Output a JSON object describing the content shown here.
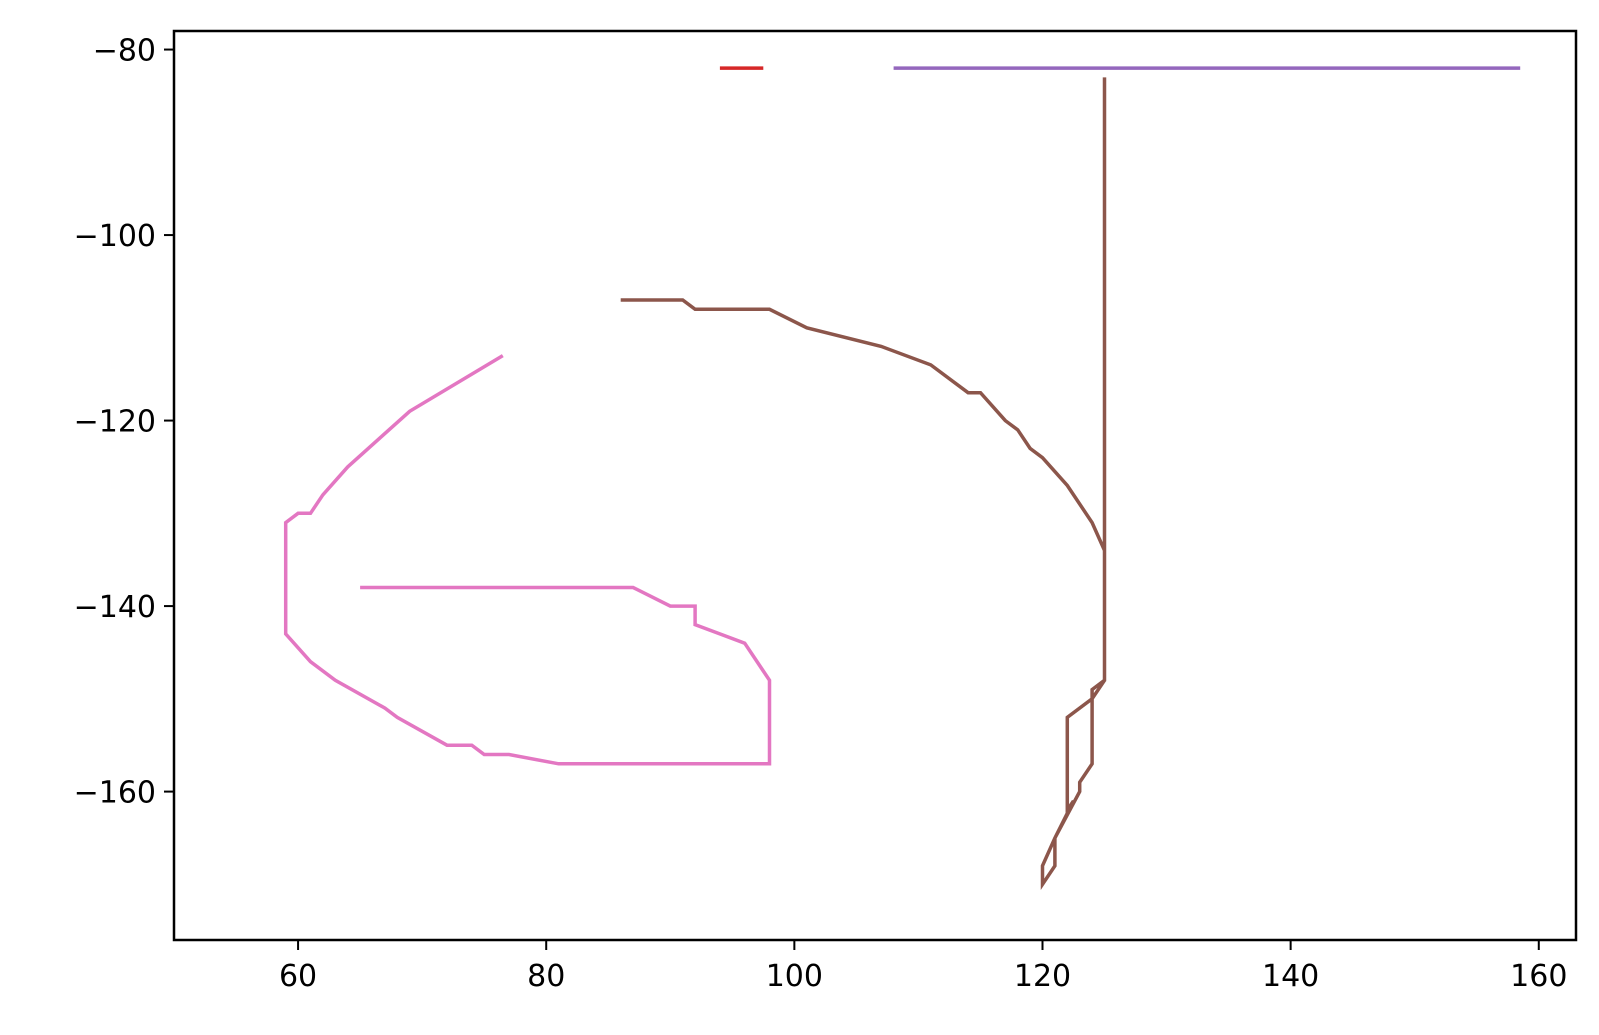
{
  "chart_data": {
    "type": "line",
    "title": "",
    "xlabel": "",
    "ylabel": "",
    "xlim": [
      50,
      163
    ],
    "ylim": [
      -176,
      -78
    ],
    "grid": false,
    "x_ticks": [
      60,
      80,
      100,
      120,
      140,
      160
    ],
    "y_ticks": [
      -80,
      -100,
      -120,
      -140,
      -160
    ],
    "x_tick_labels": [
      "60",
      "80",
      "100",
      "120",
      "140",
      "160"
    ],
    "y_tick_labels": [
      "−80",
      "−100",
      "−120",
      "−140",
      "−160"
    ],
    "series": [
      {
        "color": "#d62728",
        "x": [
          94,
          97.5
        ],
        "y": [
          -82,
          -82
        ]
      },
      {
        "color": "#9467bd",
        "x": [
          108,
          158.5
        ],
        "y": [
          -82,
          -82
        ]
      },
      {
        "color": "#8c564b",
        "x": [
          86,
          91,
          92,
          98,
          101,
          107,
          111,
          114,
          115,
          117,
          118,
          119,
          120,
          122,
          124,
          125,
          125,
          125,
          124,
          122,
          122,
          122.5,
          121,
          121,
          120,
          120,
          121,
          121,
          123,
          123,
          124,
          124,
          125,
          125
        ],
        "y": [
          -107,
          -107,
          -108,
          -108,
          -110,
          -112,
          -114,
          -117,
          -117,
          -120,
          -121,
          -123,
          -124,
          -127,
          -131,
          -134,
          -147,
          -148,
          -150,
          -152,
          -162,
          -161,
          -165,
          -168,
          -170,
          -168,
          -165,
          -165,
          -160,
          -159,
          -157,
          -149,
          -148,
          -83
        ]
      },
      {
        "color": "#e377c2",
        "x": [
          76.5,
          69,
          64,
          62,
          61,
          60,
          59,
          59,
          61,
          63,
          67,
          68,
          72,
          74,
          75,
          77,
          81,
          98,
          98,
          96,
          92,
          92,
          90,
          87,
          65
        ],
        "y": [
          -113,
          -119,
          -125,
          -128,
          -130,
          -130,
          -131,
          -143,
          -146,
          -148,
          -151,
          -152,
          -155,
          -155,
          -156,
          -156,
          -157,
          -157,
          -148,
          -144,
          -142,
          -140,
          -140,
          -138,
          -138
        ]
      }
    ]
  }
}
